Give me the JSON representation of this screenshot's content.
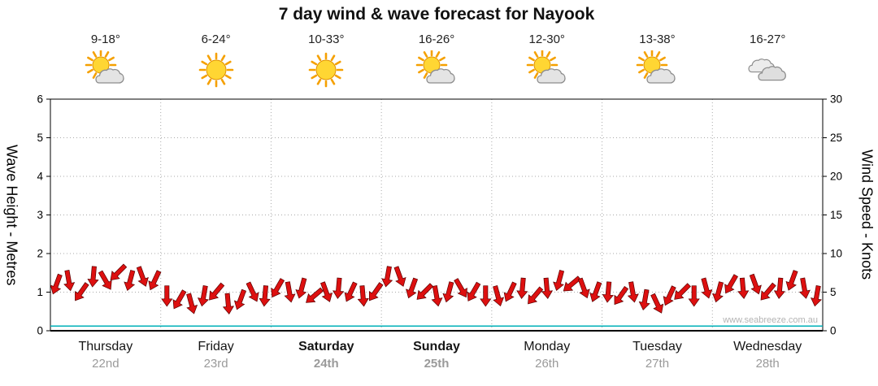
{
  "title": "7 day wind & wave forecast for Nayook",
  "watermark": "www.seabreeze.com.au",
  "days": [
    {
      "name": "Thursday",
      "date": "22nd",
      "temp": "9-18°",
      "icon": "sun-cloud",
      "weekend": false
    },
    {
      "name": "Friday",
      "date": "23rd",
      "temp": "6-24°",
      "icon": "sunny",
      "weekend": false
    },
    {
      "name": "Saturday",
      "date": "24th",
      "temp": "10-33°",
      "icon": "sunny",
      "weekend": true
    },
    {
      "name": "Sunday",
      "date": "25th",
      "temp": "16-26°",
      "icon": "sun-cloud",
      "weekend": true
    },
    {
      "name": "Monday",
      "date": "26th",
      "temp": "12-30°",
      "icon": "sun-cloud",
      "weekend": false
    },
    {
      "name": "Tuesday",
      "date": "27th",
      "temp": "13-38°",
      "icon": "sun-cloud",
      "weekend": false
    },
    {
      "name": "Wednesday",
      "date": "28th",
      "temp": "16-27°",
      "icon": "cloudy",
      "weekend": false
    }
  ],
  "chart_data": {
    "type": "area",
    "title": "7 day wind & wave forecast for Nayook",
    "left_axis": {
      "label": "Wave Height - Metres",
      "min": 0,
      "max": 6,
      "ticks": [
        0,
        1,
        2,
        3,
        4,
        5,
        6
      ]
    },
    "right_axis": {
      "label": "Wind Speed - Knots",
      "min": 0,
      "max": 30,
      "ticks": [
        0,
        5,
        10,
        15,
        20,
        25,
        30
      ]
    },
    "x_categories": [
      "Thursday 22nd",
      "Friday 23rd",
      "Saturday 24th",
      "Sunday 25th",
      "Monday 26th",
      "Tuesday 27th",
      "Wednesday 28th"
    ],
    "series": [
      {
        "name": "Wind Speed",
        "unit": "knots",
        "color": "#dd1010",
        "values": [
          6,
          6.5,
          5,
          7,
          6.5,
          7.5,
          6.5,
          7,
          6.5,
          4.5,
          4,
          3.5,
          4.5,
          5,
          3.5,
          4,
          5,
          4.5,
          5.5,
          5,
          5.5,
          4.5,
          5,
          5.5,
          5,
          4.5,
          5,
          7,
          7,
          5.5,
          5,
          4.5,
          5,
          5.5,
          5,
          4.5,
          4.5,
          5,
          5.5,
          4.5,
          5.5,
          6.5,
          6,
          5.5,
          5,
          5,
          4.5,
          5,
          4,
          3.5,
          4.5,
          5,
          4.5,
          5.5,
          5,
          6,
          5.5,
          6,
          5,
          5.5,
          6.5,
          5.5,
          4.5
        ]
      },
      {
        "name": "Wave Height",
        "unit": "metres",
        "color": "#00b0b8",
        "values": [
          0.1,
          0.1,
          0.1,
          0.1,
          0.1,
          0.1,
          0.1
        ]
      }
    ],
    "wind_directions_deg": [
      200,
      170,
      215,
      185,
      150,
      225,
      195,
      160,
      205,
      180,
      210,
      165,
      190,
      220,
      175,
      200,
      155,
      185,
      210,
      170,
      195,
      230,
      160,
      185,
      205,
      175,
      215,
      190,
      160,
      200,
      225,
      170,
      195,
      150,
      210,
      180,
      165,
      205,
      185,
      220,
      175,
      195,
      230,
      160,
      200,
      185,
      215,
      170,
      190,
      155,
      205,
      225,
      180,
      165,
      195,
      210,
      175,
      160,
      220,
      185,
      200,
      170,
      190
    ],
    "legend": "off",
    "grid": "dotted"
  }
}
